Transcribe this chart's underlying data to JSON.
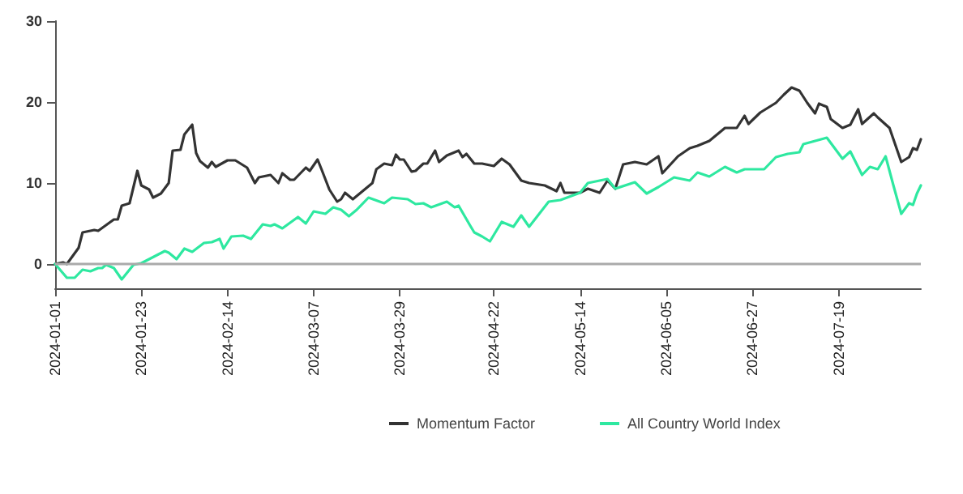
{
  "chart_data": {
    "type": "line",
    "xlim": [
      "2024-01-01",
      "2024-08-09"
    ],
    "ylim": [
      -3,
      30
    ],
    "yticks": [
      0,
      10,
      20,
      30
    ],
    "xticks": [
      "2024-01-01",
      "2024-01-23",
      "2024-02-14",
      "2024-03-07",
      "2024-03-29",
      "2024-04-22",
      "2024-05-14",
      "2024-06-05",
      "2024-06-27",
      "2024-07-19"
    ],
    "grid": false,
    "legend": "bottom",
    "marker": "none",
    "line_style": "solid",
    "ref_lines": [
      {
        "axis": "y",
        "value": 0,
        "color": "#aaaaaa"
      }
    ],
    "series": [
      {
        "name": "Momentum Factor",
        "color": "#333333",
        "x": [
          "2024-01-01",
          "2024-01-03",
          "2024-01-04",
          "2024-01-07",
          "2024-01-08",
          "2024-01-11",
          "2024-01-12",
          "2024-01-16",
          "2024-01-17",
          "2024-01-18",
          "2024-01-20",
          "2024-01-22",
          "2024-01-23",
          "2024-01-25",
          "2024-01-26",
          "2024-01-28",
          "2024-01-30",
          "2024-01-31",
          "2024-02-02",
          "2024-02-03",
          "2024-02-05",
          "2024-02-06",
          "2024-02-07",
          "2024-02-09",
          "2024-02-10",
          "2024-02-11",
          "2024-02-14",
          "2024-02-16",
          "2024-02-19",
          "2024-02-21",
          "2024-02-22",
          "2024-02-25",
          "2024-02-27",
          "2024-02-28",
          "2024-03-01",
          "2024-03-02",
          "2024-03-05",
          "2024-03-06",
          "2024-03-08",
          "2024-03-09",
          "2024-03-11",
          "2024-03-13",
          "2024-03-14",
          "2024-03-15",
          "2024-03-17",
          "2024-03-19",
          "2024-03-22",
          "2024-03-23",
          "2024-03-25",
          "2024-03-27",
          "2024-03-28",
          "2024-03-29",
          "2024-03-30",
          "2024-04-01",
          "2024-04-02",
          "2024-04-04",
          "2024-04-05",
          "2024-04-07",
          "2024-04-08",
          "2024-04-10",
          "2024-04-13",
          "2024-04-14",
          "2024-04-15",
          "2024-04-17",
          "2024-04-19",
          "2024-04-22",
          "2024-04-24",
          "2024-04-26",
          "2024-04-29",
          "2024-05-01",
          "2024-05-05",
          "2024-05-08",
          "2024-05-09",
          "2024-05-10",
          "2024-05-14",
          "2024-05-16",
          "2024-05-19",
          "2024-05-21",
          "2024-05-23",
          "2024-05-25",
          "2024-05-28",
          "2024-05-31",
          "2024-06-03",
          "2024-06-04",
          "2024-06-08",
          "2024-06-11",
          "2024-06-13",
          "2024-06-16",
          "2024-06-20",
          "2024-06-23",
          "2024-06-25",
          "2024-06-26",
          "2024-06-29",
          "2024-07-01",
          "2024-07-03",
          "2024-07-05",
          "2024-07-07",
          "2024-07-09",
          "2024-07-11",
          "2024-07-13",
          "2024-07-14",
          "2024-07-16",
          "2024-07-17",
          "2024-07-20",
          "2024-07-22",
          "2024-07-24",
          "2024-07-25",
          "2024-07-28",
          "2024-07-29",
          "2024-08-01",
          "2024-08-04",
          "2024-08-06",
          "2024-08-07",
          "2024-08-08",
          "2024-08-09"
        ],
        "values": [
          0,
          0.2,
          0,
          2,
          3.9,
          4.2,
          4.1,
          5.5,
          5.5,
          7.2,
          7.5,
          11.5,
          9.7,
          9.2,
          8.2,
          8.7,
          10,
          14,
          14.1,
          16,
          17.2,
          13.7,
          12.7,
          11.9,
          12.6,
          12,
          12.8,
          12.8,
          11.9,
          10,
          10.7,
          11,
          10,
          11.2,
          10.4,
          10.4,
          11.9,
          11.5,
          12.9,
          11.7,
          9.2,
          7.7,
          8,
          8.8,
          8,
          8.8,
          10,
          11.7,
          12.4,
          12.2,
          13.5,
          12.9,
          12.9,
          11.4,
          11.5,
          12.4,
          12.4,
          14,
          12.6,
          13.4,
          14,
          13.2,
          13.6,
          12.4,
          12.4,
          12.1,
          13,
          12.3,
          10.3,
          10,
          9.7,
          9,
          10,
          8.8,
          8.8,
          9.3,
          8.8,
          10.3,
          9.3,
          12.3,
          12.6,
          12.3,
          13.3,
          11.2,
          13.3,
          14.3,
          14.6,
          15.2,
          16.8,
          16.8,
          18.3,
          17.3,
          18.7,
          19.3,
          19.9,
          20.9,
          21.8,
          21.4,
          19.9,
          18.6,
          19.8,
          19.4,
          17.9,
          16.8,
          17.2,
          19.1,
          17.3,
          18.6,
          18.1,
          16.8,
          12.6,
          13.2,
          14.3,
          14.1,
          15.4
        ]
      },
      {
        "name": "All Country World Index",
        "color": "#2ee8a0",
        "x": [
          "2024-01-01",
          "2024-01-04",
          "2024-01-06",
          "2024-01-08",
          "2024-01-10",
          "2024-01-12",
          "2024-01-13",
          "2024-01-14",
          "2024-01-16",
          "2024-01-18",
          "2024-01-21",
          "2024-01-23",
          "2024-01-25",
          "2024-01-27",
          "2024-01-29",
          "2024-01-30",
          "2024-02-01",
          "2024-02-03",
          "2024-02-05",
          "2024-02-08",
          "2024-02-10",
          "2024-02-12",
          "2024-02-13",
          "2024-02-15",
          "2024-02-18",
          "2024-02-20",
          "2024-02-23",
          "2024-02-25",
          "2024-02-26",
          "2024-02-28",
          "2024-03-03",
          "2024-03-05",
          "2024-03-07",
          "2024-03-10",
          "2024-03-12",
          "2024-03-14",
          "2024-03-16",
          "2024-03-18",
          "2024-03-21",
          "2024-03-25",
          "2024-03-27",
          "2024-03-31",
          "2024-04-02",
          "2024-04-04",
          "2024-04-06",
          "2024-04-10",
          "2024-04-12",
          "2024-04-13",
          "2024-04-16",
          "2024-04-17",
          "2024-04-19",
          "2024-04-21",
          "2024-04-24",
          "2024-04-27",
          "2024-04-29",
          "2024-05-01",
          "2024-05-06",
          "2024-05-09",
          "2024-05-14",
          "2024-05-16",
          "2024-05-21",
          "2024-05-23",
          "2024-05-28",
          "2024-05-31",
          "2024-06-03",
          "2024-06-07",
          "2024-06-11",
          "2024-06-13",
          "2024-06-16",
          "2024-06-20",
          "2024-06-23",
          "2024-06-25",
          "2024-06-30",
          "2024-07-03",
          "2024-07-06",
          "2024-07-09",
          "2024-07-10",
          "2024-07-16",
          "2024-07-20",
          "2024-07-22",
          "2024-07-25",
          "2024-07-27",
          "2024-07-29",
          "2024-07-31",
          "2024-08-02",
          "2024-08-04",
          "2024-08-06",
          "2024-08-07",
          "2024-08-08",
          "2024-08-09"
        ],
        "values": [
          0,
          -1.7,
          -1.7,
          -0.7,
          -0.9,
          -0.5,
          -0.5,
          -0.1,
          -0.5,
          -1.9,
          -0.1,
          0.1,
          0.6,
          1.1,
          1.6,
          1.4,
          0.6,
          1.9,
          1.5,
          2.6,
          2.7,
          3.1,
          1.9,
          3.4,
          3.5,
          3.1,
          4.9,
          4.7,
          4.9,
          4.4,
          5.8,
          5,
          6.5,
          6.2,
          7,
          6.7,
          5.9,
          6.7,
          8.2,
          7.5,
          8.2,
          8,
          7.4,
          7.5,
          7,
          7.7,
          7,
          7.2,
          4.7,
          3.9,
          3.4,
          2.8,
          5.2,
          4.6,
          6,
          4.6,
          7.7,
          7.9,
          8.8,
          10,
          10.5,
          9.3,
          10.1,
          8.7,
          9.5,
          10.7,
          10.3,
          11.3,
          10.8,
          12,
          11.3,
          11.7,
          11.7,
          13.2,
          13.6,
          13.8,
          14.8,
          15.6,
          13,
          13.9,
          11,
          12,
          11.7,
          13.3,
          9.7,
          6.2,
          7.5,
          7.3,
          8.7,
          9.7
        ]
      }
    ]
  }
}
